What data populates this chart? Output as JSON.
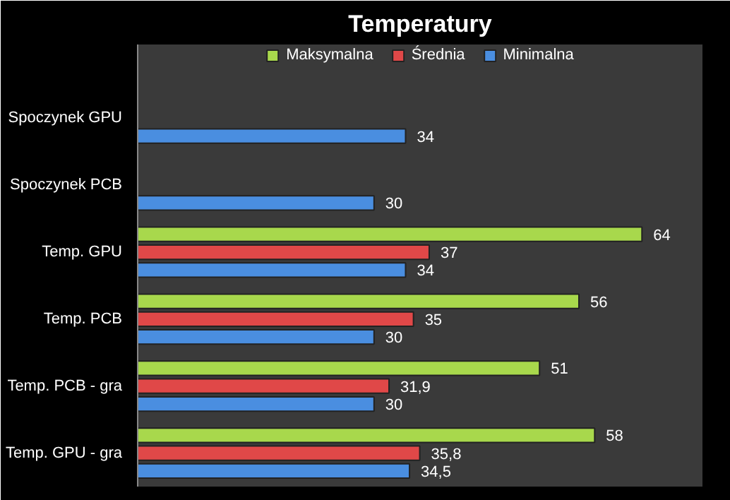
{
  "chart_data": {
    "type": "bar",
    "orientation": "horizontal",
    "title": "Temperatury",
    "categories": [
      "Spoczynek GPU",
      "Spoczynek PCB",
      "Temp. GPU",
      "Temp. PCB",
      "Temp. PCB - gra",
      "Temp. GPU - gra"
    ],
    "series": [
      {
        "name": "Maksymalna",
        "color": "#a8d84c",
        "values": [
          null,
          null,
          64,
          56,
          51,
          58
        ],
        "value_labels": [
          null,
          null,
          "64",
          "56",
          "51",
          "58"
        ]
      },
      {
        "name": "Średnia",
        "color": "#e04848",
        "values": [
          null,
          null,
          37,
          35,
          31.9,
          35.8
        ],
        "value_labels": [
          null,
          null,
          "37",
          "35",
          "31,9",
          "35,8"
        ]
      },
      {
        "name": "Minimalna",
        "color": "#4a8ee0",
        "values": [
          34,
          30,
          34,
          30,
          30,
          34.5
        ],
        "value_labels": [
          "34",
          "30",
          "34",
          "30",
          "30",
          "34,5"
        ]
      }
    ],
    "legend": "top",
    "grid": false
  }
}
